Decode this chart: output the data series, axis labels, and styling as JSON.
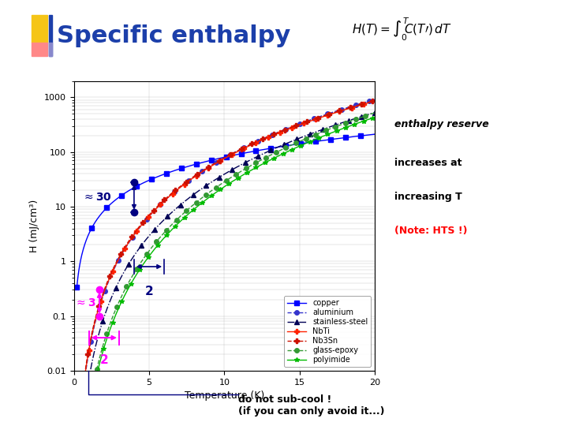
{
  "title": "Specific enthalpy",
  "xlabel": "Temperature (K)",
  "ylabel": "H (mJ/cm³)",
  "xlim": [
    0,
    20
  ],
  "ylim": [
    0.01,
    2000
  ],
  "background_color": "#ffffff",
  "title_color": "#1c3faa",
  "title_fontsize": 22,
  "note_text1": "enthalpy reserve",
  "note_text2": "increases at",
  "note_text3": "increasing T",
  "note_text4": "(Note: HTS !)",
  "note_color_black": "#000000",
  "note_color_red": "#ff0000",
  "subcool_text1": "do not sub-cool !",
  "subcool_text2": "(if you can only avoid it...)",
  "navy": "#000080",
  "magenta": "#ff00ff",
  "legend_labels": [
    "copper",
    "aluminium",
    "stainless-steel",
    "NbTi",
    "Nb3Sn",
    "glass-epoxy",
    "polyimide"
  ],
  "legend_colors": [
    "#0000ff",
    "#3333cc",
    "#000055",
    "#ff2200",
    "#cc1100",
    "#339933",
    "#00bb00"
  ],
  "legend_markers": [
    "s",
    "o",
    "^",
    "P",
    "P",
    "o",
    "*"
  ],
  "legend_linestyles": [
    "-",
    "--",
    "-.",
    "-",
    "--",
    "--",
    "-"
  ],
  "logo_yellow": "#f5c518",
  "logo_pink": "#ff8888",
  "logo_blue_dark": "#1c3faa",
  "logo_blue_light": "#8888cc"
}
